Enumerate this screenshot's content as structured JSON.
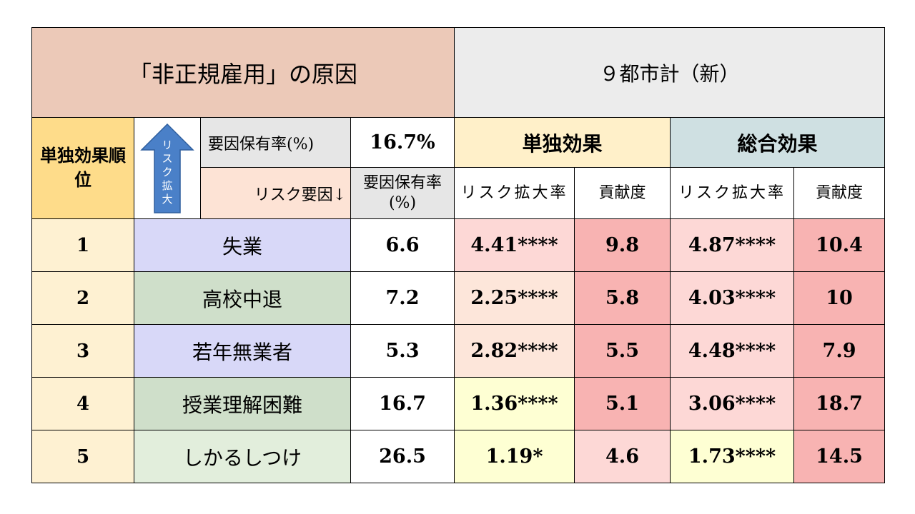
{
  "title_left": "「非正規雇用」の原因",
  "title_right": "９都市計（新）",
  "header": {
    "rank_label": "単独効果順位",
    "arrow_text": "リスク拡大",
    "holding_rate_label": "要因保有率(%)",
    "holding_rate_value": "16.7%",
    "single_effect": "単独効果",
    "total_effect": "総合効果",
    "risk_factor_label": "リスク要因↓",
    "col_holding": "要因保有率(%)",
    "col_risk_single": "リスク拡大率",
    "col_contrib_single": "貢献度",
    "col_risk_total": "リスク拡大率",
    "col_contrib_total": "貢献度"
  },
  "rows": [
    {
      "rank": "1",
      "factor": "失業",
      "holding": "6.6",
      "risk_single": "4.41****",
      "contrib_single": "9.8",
      "risk_total": "4.87****",
      "contrib_total": "10.4"
    },
    {
      "rank": "2",
      "factor": "高校中退",
      "holding": "7.2",
      "risk_single": "2.25****",
      "contrib_single": "5.8",
      "risk_total": "4.03****",
      "contrib_total": "10"
    },
    {
      "rank": "3",
      "factor": "若年無業者",
      "holding": "5.3",
      "risk_single": "2.82****",
      "contrib_single": "5.5",
      "risk_total": "4.48****",
      "contrib_total": "7.9"
    },
    {
      "rank": "4",
      "factor": "授業理解困難",
      "holding": "16.7",
      "risk_single": "1.36****",
      "contrib_single": "5.1",
      "risk_total": "3.06****",
      "contrib_total": "18.7"
    },
    {
      "rank": "5",
      "factor": "しかるしつけ",
      "holding": "26.5",
      "risk_single": "1.19*",
      "contrib_single": "4.6",
      "risk_total": "1.73****",
      "contrib_total": "14.5"
    }
  ],
  "colors": {
    "factor_bg": [
      "#d8d8f8",
      "#cfdfca",
      "#d8d8f8",
      "#cfdfca",
      "#e2eedc"
    ],
    "risk_single_bg": [
      "#fdd8d6",
      "#fde6da",
      "#fde6da",
      "#feffd3",
      "#feffd3"
    ],
    "contrib_single_bg": [
      "#f8b3b2",
      "#f8b3b2",
      "#f8b3b2",
      "#f8b3b2",
      "#fdd8d6"
    ],
    "risk_total_bg": [
      "#fdd8d6",
      "#fdd8d6",
      "#fdd8d6",
      "#fdd8d6",
      "#feffd3"
    ],
    "contrib_total_bg": [
      "#f8b3b2",
      "#f8b3b2",
      "#f8b3b2",
      "#f8b3b2",
      "#f8b3b2"
    ],
    "arrow_fill": "#4a80c8"
  }
}
